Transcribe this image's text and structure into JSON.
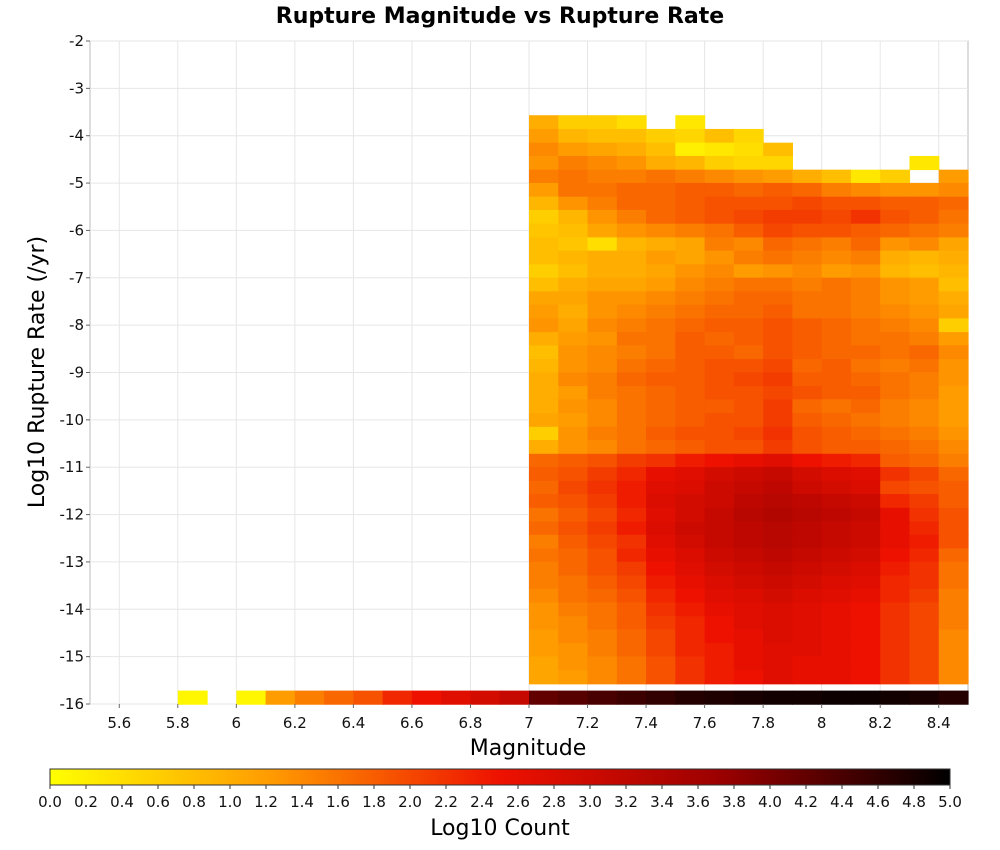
{
  "chart_data": {
    "type": "heatmap",
    "title": "Rupture Magnitude vs Rupture Rate",
    "xlabel": "Magnitude",
    "ylabel": "Log10 Rupture Rate (/yr)",
    "xlim": [
      5.5,
      8.5
    ],
    "ylim": [
      -16,
      -2
    ],
    "x_ticks": [
      "5.6",
      "5.8",
      "6",
      "6.2",
      "6.4",
      "6.6",
      "6.8",
      "7",
      "7.2",
      "7.4",
      "7.6",
      "7.8",
      "8",
      "8.2",
      "8.4"
    ],
    "y_ticks": [
      "-2",
      "-3",
      "-4",
      "-5",
      "-6",
      "-7",
      "-8",
      "-9",
      "-10",
      "-11",
      "-12",
      "-13",
      "-14",
      "-15",
      "-16"
    ],
    "grid": true,
    "x_bin_width": 0.1,
    "y_bin_height": 0.286,
    "colorbar": {
      "label": "Log10 Count",
      "min": 0.0,
      "max": 5.0,
      "ticks": [
        "0.0",
        "0.2",
        "0.4",
        "0.6",
        "0.8",
        "1.0",
        "1.2",
        "1.4",
        "1.6",
        "1.8",
        "2.0",
        "2.2",
        "2.4",
        "2.6",
        "2.8",
        "3.0",
        "3.2",
        "3.4",
        "3.6",
        "3.8",
        "4.0",
        "4.2",
        "4.4",
        "4.6",
        "4.8",
        "5.0"
      ],
      "colors": [
        "#ffff00",
        "#ff9900",
        "#ee1100",
        "#990000",
        "#000000"
      ]
    },
    "bottom_row": {
      "y_center": -15.86,
      "x_centers": [
        5.85,
        6.05,
        6.15,
        6.25,
        6.35,
        6.45,
        6.55,
        6.65,
        6.75,
        6.85,
        6.95,
        7.05,
        7.15,
        7.25,
        7.35,
        7.45,
        7.55,
        7.65,
        7.75,
        7.85,
        7.95,
        8.05,
        8.15,
        8.25,
        8.35,
        8.45
      ],
      "values": [
        0.1,
        0.1,
        1.2,
        1.5,
        1.7,
        1.9,
        2.3,
        2.5,
        2.7,
        2.9,
        3.1,
        4.2,
        4.3,
        4.4,
        4.5,
        4.6,
        4.7,
        4.75,
        4.8,
        4.85,
        4.85,
        4.9,
        4.9,
        4.85,
        4.8,
        4.7
      ]
    },
    "grid_x_centers": [
      7.05,
      7.15,
      7.25,
      7.35,
      7.45,
      7.55,
      7.65,
      7.75,
      7.85,
      7.95,
      8.05,
      8.15,
      8.25,
      8.35,
      8.45
    ],
    "grid_y_centers": [
      -3.71,
      -4.0,
      -4.29,
      -4.57,
      -4.86,
      -5.14,
      -5.43,
      -5.71,
      -6.0,
      -6.29,
      -6.57,
      -6.86,
      -7.14,
      -7.43,
      -7.71,
      -8.0,
      -8.29,
      -8.57,
      -8.86,
      -9.14,
      -9.43,
      -9.71,
      -10.0,
      -10.29,
      -10.57,
      -10.86,
      -11.14,
      -11.43,
      -11.71,
      -12.0,
      -12.29,
      -12.57,
      -12.86,
      -13.14,
      -13.43,
      -13.71,
      -14.0,
      -14.29,
      -14.57,
      -14.86,
      -15.14,
      -15.43
    ],
    "grid_values": [
      [
        1.0,
        0.6,
        0.6,
        0.4,
        null,
        0.3,
        null,
        null,
        null,
        null,
        null,
        null,
        null,
        null,
        null
      ],
      [
        1.2,
        0.9,
        0.8,
        0.8,
        0.6,
        0.5,
        0.8,
        0.5,
        null,
        null,
        null,
        null,
        null,
        null,
        null
      ],
      [
        1.4,
        1.2,
        1.1,
        1.0,
        0.8,
        0.2,
        0.3,
        0.4,
        0.8,
        null,
        null,
        null,
        null,
        null,
        null
      ],
      [
        1.3,
        1.5,
        1.4,
        1.3,
        1.0,
        0.9,
        0.6,
        0.5,
        0.5,
        null,
        null,
        null,
        null,
        0.3,
        null
      ],
      [
        1.5,
        1.6,
        1.5,
        1.5,
        1.6,
        1.5,
        1.4,
        1.3,
        1.2,
        1.0,
        0.8,
        0.3,
        0.6,
        null,
        1.2
      ],
      [
        1.2,
        1.6,
        1.6,
        1.7,
        1.7,
        1.8,
        1.8,
        1.7,
        1.8,
        1.7,
        1.5,
        1.4,
        1.3,
        1.3,
        1.4
      ],
      [
        0.9,
        1.3,
        1.5,
        1.7,
        1.7,
        1.8,
        1.9,
        1.9,
        1.9,
        2.0,
        1.9,
        1.9,
        1.8,
        1.8,
        1.7
      ],
      [
        0.6,
        0.9,
        1.3,
        1.5,
        1.7,
        1.8,
        1.9,
        2.0,
        2.1,
        2.1,
        2.0,
        2.2,
        1.9,
        1.8,
        1.6
      ],
      [
        0.7,
        0.8,
        1.1,
        1.3,
        1.4,
        1.5,
        1.6,
        1.8,
        2.0,
        1.9,
        1.9,
        1.8,
        1.7,
        1.6,
        1.5
      ],
      [
        0.8,
        0.7,
        0.4,
        0.9,
        1.0,
        1.1,
        1.5,
        1.4,
        1.7,
        1.6,
        1.5,
        1.7,
        1.3,
        1.4,
        1.1
      ],
      [
        0.8,
        0.9,
        1.0,
        1.0,
        1.2,
        1.1,
        1.3,
        1.5,
        1.6,
        1.5,
        1.4,
        1.5,
        1.0,
        0.9,
        1.0
      ],
      [
        0.6,
        0.8,
        1.0,
        1.0,
        1.1,
        1.3,
        1.4,
        1.2,
        1.3,
        1.4,
        1.2,
        1.3,
        0.9,
        0.8,
        0.9
      ],
      [
        0.8,
        1.0,
        1.1,
        1.1,
        1.2,
        1.4,
        1.5,
        1.6,
        1.6,
        1.5,
        1.6,
        1.5,
        1.3,
        1.2,
        0.8
      ],
      [
        1.1,
        1.1,
        1.3,
        1.3,
        1.4,
        1.5,
        1.6,
        1.7,
        1.7,
        1.6,
        1.6,
        1.5,
        1.3,
        1.2,
        1.0
      ],
      [
        1.2,
        1.0,
        1.3,
        1.4,
        1.5,
        1.6,
        1.7,
        1.7,
        1.8,
        1.6,
        1.6,
        1.5,
        1.4,
        1.3,
        1.1
      ],
      [
        1.3,
        1.1,
        1.4,
        1.5,
        1.6,
        1.7,
        1.8,
        1.8,
        1.9,
        1.8,
        1.7,
        1.6,
        1.5,
        1.4,
        0.6
      ],
      [
        1.0,
        1.2,
        1.3,
        1.6,
        1.6,
        1.8,
        1.7,
        1.8,
        1.9,
        1.8,
        1.7,
        1.6,
        1.6,
        1.5,
        1.2
      ],
      [
        0.8,
        1.3,
        1.4,
        1.5,
        1.6,
        1.8,
        1.8,
        1.7,
        1.9,
        1.8,
        1.7,
        1.7,
        1.6,
        1.7,
        1.4
      ],
      [
        0.9,
        1.3,
        1.4,
        1.6,
        1.7,
        1.8,
        1.9,
        1.9,
        2.0,
        1.7,
        1.8,
        1.6,
        1.5,
        1.6,
        1.3
      ],
      [
        1.0,
        1.4,
        1.5,
        1.7,
        1.8,
        1.8,
        1.9,
        2.0,
        2.1,
        1.8,
        1.8,
        1.7,
        1.6,
        1.5,
        1.3
      ],
      [
        1.0,
        1.2,
        1.5,
        1.6,
        1.7,
        1.8,
        1.9,
        1.9,
        2.0,
        1.9,
        1.8,
        1.8,
        1.6,
        1.5,
        1.2
      ],
      [
        1.0,
        1.3,
        1.4,
        1.6,
        1.7,
        1.8,
        1.8,
        1.9,
        2.1,
        1.7,
        1.6,
        1.7,
        1.5,
        1.4,
        1.2
      ],
      [
        1.1,
        1.2,
        1.4,
        1.6,
        1.7,
        1.8,
        1.9,
        1.9,
        2.1,
        1.8,
        1.7,
        1.6,
        1.5,
        1.4,
        1.2
      ],
      [
        0.6,
        1.3,
        1.5,
        1.6,
        1.8,
        1.9,
        1.9,
        2.0,
        2.2,
        1.9,
        1.8,
        1.7,
        1.6,
        1.5,
        1.3
      ],
      [
        1.0,
        1.3,
        1.4,
        1.6,
        1.7,
        1.8,
        1.9,
        1.9,
        2.1,
        1.9,
        1.8,
        1.8,
        1.7,
        1.6,
        1.4
      ],
      [
        1.7,
        1.8,
        1.9,
        2.1,
        2.2,
        2.4,
        2.5,
        2.6,
        2.7,
        2.5,
        2.4,
        2.3,
        1.8,
        1.7,
        1.5
      ],
      [
        1.8,
        1.9,
        2.1,
        2.3,
        2.6,
        2.7,
        2.9,
        3.0,
        3.1,
        2.9,
        2.8,
        2.7,
        2.2,
        2.0,
        1.7
      ],
      [
        1.7,
        2.0,
        2.2,
        2.4,
        2.7,
        2.8,
        3.0,
        3.1,
        3.2,
        3.0,
        2.9,
        2.8,
        2.0,
        1.9,
        1.8
      ],
      [
        1.8,
        1.9,
        2.1,
        2.4,
        2.8,
        2.9,
        3.0,
        3.2,
        3.3,
        3.2,
        3.1,
        3.0,
        2.3,
        2.1,
        1.8
      ],
      [
        1.6,
        1.8,
        2.0,
        2.3,
        2.7,
        2.9,
        3.1,
        3.3,
        3.4,
        3.3,
        3.2,
        3.1,
        2.6,
        2.2,
        1.9
      ],
      [
        1.7,
        1.9,
        2.1,
        2.4,
        2.8,
        3.0,
        3.1,
        3.2,
        3.3,
        3.2,
        3.1,
        3.0,
        2.6,
        2.3,
        1.9
      ],
      [
        1.5,
        1.8,
        2.0,
        2.2,
        2.7,
        2.9,
        3.1,
        3.2,
        3.3,
        3.2,
        3.1,
        3.0,
        2.6,
        2.4,
        1.9
      ],
      [
        1.6,
        1.7,
        1.9,
        2.3,
        2.6,
        2.8,
        3.0,
        3.1,
        3.2,
        3.1,
        3.0,
        2.9,
        2.5,
        2.3,
        1.7
      ],
      [
        1.5,
        1.7,
        1.9,
        2.1,
        2.5,
        2.7,
        2.9,
        3.0,
        3.1,
        3.0,
        2.9,
        2.8,
        2.4,
        2.2,
        1.6
      ],
      [
        1.5,
        1.6,
        1.8,
        2.0,
        2.4,
        2.6,
        2.8,
        2.9,
        3.0,
        2.9,
        2.8,
        2.7,
        2.3,
        2.2,
        1.6
      ],
      [
        1.4,
        1.6,
        1.7,
        1.9,
        2.3,
        2.5,
        2.7,
        2.8,
        2.9,
        2.8,
        2.7,
        2.6,
        2.3,
        2.1,
        1.5
      ],
      [
        1.3,
        1.5,
        1.6,
        1.8,
        2.2,
        2.4,
        2.6,
        2.7,
        2.8,
        2.7,
        2.6,
        2.5,
        2.2,
        2.0,
        1.5
      ],
      [
        1.3,
        1.4,
        1.6,
        1.8,
        2.1,
        2.3,
        2.5,
        2.7,
        2.8,
        2.7,
        2.6,
        2.5,
        2.2,
        2.0,
        1.5
      ],
      [
        1.2,
        1.4,
        1.5,
        1.7,
        2.0,
        2.3,
        2.5,
        2.6,
        2.8,
        2.7,
        2.6,
        2.5,
        2.2,
        2.0,
        1.4
      ],
      [
        1.2,
        1.3,
        1.5,
        1.7,
        2.0,
        2.3,
        2.4,
        2.6,
        2.7,
        2.7,
        2.6,
        2.5,
        2.2,
        2.0,
        1.4
      ],
      [
        1.1,
        1.3,
        1.4,
        1.6,
        1.9,
        2.2,
        2.4,
        2.6,
        2.7,
        2.6,
        2.6,
        2.5,
        2.2,
        2.0,
        1.4
      ],
      [
        1.1,
        1.2,
        1.4,
        1.6,
        1.9,
        2.2,
        2.4,
        2.5,
        2.7,
        2.6,
        2.6,
        2.5,
        2.2,
        2.0,
        1.4
      ]
    ]
  }
}
